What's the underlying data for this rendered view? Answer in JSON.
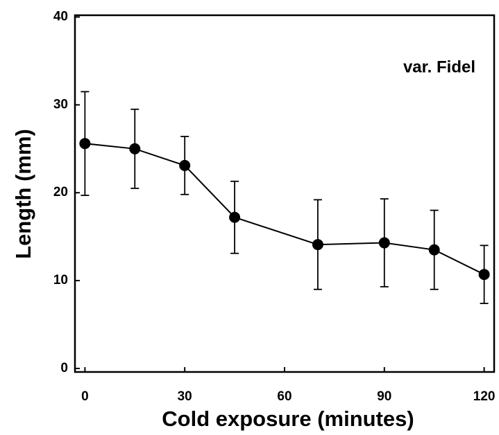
{
  "chart_data": {
    "type": "line",
    "x_label": "Cold exposure (minutes)",
    "y_label": "Length (mm)",
    "annotation": "var. Fidel",
    "x": [
      0,
      15,
      30,
      45,
      70,
      90,
      105,
      120
    ],
    "series": [
      {
        "color": "#000000",
        "values": [
          25.6,
          25.0,
          23.1,
          17.2,
          14.1,
          14.3,
          13.5,
          10.7
        ],
        "errors": [
          5.9,
          4.5,
          3.3,
          4.1,
          5.1,
          5.0,
          4.5,
          3.3
        ]
      }
    ],
    "xlim": [
      -3,
      123
    ],
    "xticks": [
      0,
      30,
      60,
      90,
      120
    ],
    "ylim": [
      -0.4,
      40.2
    ],
    "yticks": [
      0,
      10,
      20,
      30,
      40
    ]
  }
}
